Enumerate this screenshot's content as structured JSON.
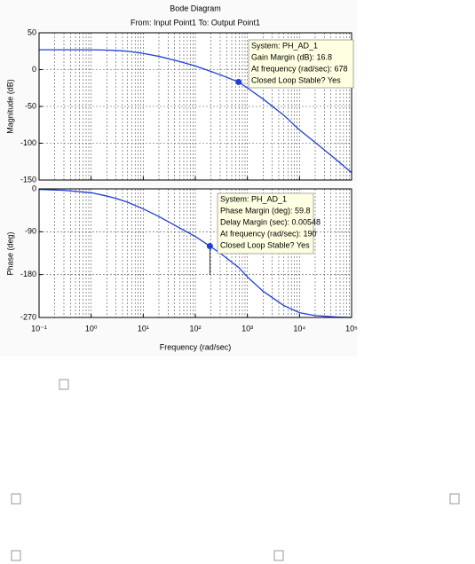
{
  "chart_data": [
    {
      "type": "line",
      "title": "Bode Diagram",
      "subtitle": "From: Input Point1  To: Output Point1",
      "ylabel": "Magnitude (dB)",
      "xscale": "log",
      "grid": true,
      "xlim": [
        0.1,
        100000
      ],
      "ylim": [
        -150,
        50
      ],
      "yticks": [
        -150,
        -100,
        -50,
        0,
        50
      ],
      "x": [
        0.1,
        0.3,
        1,
        2,
        3,
        5,
        10,
        20,
        50,
        100,
        190,
        300,
        678,
        1000,
        2000,
        5000,
        10000,
        20000,
        50000,
        100000
      ],
      "series": [
        {
          "name": "PH_AD_1",
          "color": "#1f3fd6",
          "values": [
            27,
            27,
            27,
            26.5,
            26,
            25,
            22,
            18,
            11,
            5,
            -2,
            -7,
            -16.8,
            -25,
            -40,
            -62,
            -82,
            -99,
            -122,
            -140
          ]
        }
      ],
      "marker": {
        "x": 678,
        "y": -16.8
      },
      "annotation": [
        "System: PH_AD_1",
        "Gain Margin (dB): 16.8",
        "At frequency (rad/sec): 678",
        "Closed Loop Stable? Yes"
      ]
    },
    {
      "type": "line",
      "ylabel": "Phase (deg)",
      "xlabel": "Frequency  (rad/sec)",
      "xscale": "log",
      "grid": true,
      "xlim": [
        0.1,
        100000
      ],
      "xticks": [
        {
          "value": 0.1,
          "label": "10⁻¹"
        },
        {
          "value": 1,
          "label": "10⁰"
        },
        {
          "value": 10,
          "label": "10¹"
        },
        {
          "value": 100,
          "label": "10²"
        },
        {
          "value": 1000,
          "label": "10³"
        },
        {
          "value": 10000,
          "label": "10⁴"
        },
        {
          "value": 100000,
          "label": "10⁵"
        }
      ],
      "ylim": [
        -270,
        0
      ],
      "yticks": [
        -270,
        -180,
        -90,
        0
      ],
      "x": [
        0.1,
        0.3,
        1,
        2,
        3,
        5,
        10,
        20,
        50,
        100,
        190,
        300,
        678,
        1000,
        2000,
        5000,
        10000,
        20000,
        50000,
        100000
      ],
      "series": [
        {
          "name": "PH_AD_1",
          "color": "#1f3fd6",
          "values": [
            -1,
            -3,
            -8,
            -15,
            -20,
            -28,
            -42,
            -58,
            -82,
            -100,
            -120.2,
            -135,
            -165,
            -185,
            -215,
            -245,
            -260,
            -266,
            -269,
            -270
          ]
        }
      ],
      "marker": {
        "x": 190,
        "y": -120.2
      },
      "annotation": [
        "System: PH_AD_1",
        "Phase Margin (deg): 59.8",
        "Delay Margin (sec): 0.00548",
        "At frequency (rad/sec): 190",
        "Closed Loop Stable? Yes"
      ]
    }
  ]
}
